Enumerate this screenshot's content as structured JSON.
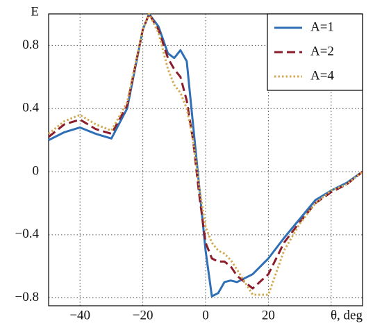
{
  "chart_data": {
    "type": "line",
    "ylabel": "E",
    "xlabel": "θ, deg",
    "x": [
      -50,
      -45,
      -40,
      -35,
      -30,
      -25,
      -20,
      -18,
      -15,
      -12,
      -10,
      -8,
      -6,
      -4,
      -2,
      0,
      2,
      4,
      6,
      8,
      10,
      15,
      20,
      25,
      30,
      35,
      40,
      45,
      50
    ],
    "series": [
      {
        "name": "A=1",
        "color": "#2f6fb5",
        "dash": "solid",
        "values": [
          0.2,
          0.25,
          0.28,
          0.24,
          0.21,
          0.4,
          0.9,
          1.0,
          0.92,
          0.75,
          0.72,
          0.77,
          0.7,
          0.3,
          -0.1,
          -0.5,
          -0.79,
          -0.77,
          -0.7,
          -0.69,
          -0.7,
          -0.65,
          -0.55,
          -0.42,
          -0.3,
          -0.18,
          -0.12,
          -0.07,
          0
        ]
      },
      {
        "name": "A=2",
        "color": "#8b1c2c",
        "dash": "dashed",
        "values": [
          0.22,
          0.3,
          0.33,
          0.27,
          0.24,
          0.42,
          0.9,
          1.0,
          0.9,
          0.72,
          0.65,
          0.6,
          0.45,
          0.2,
          -0.15,
          -0.45,
          -0.55,
          -0.57,
          -0.57,
          -0.6,
          -0.66,
          -0.74,
          -0.65,
          -0.45,
          -0.32,
          -0.2,
          -0.13,
          -0.08,
          0
        ]
      },
      {
        "name": "A=4",
        "color": "#d2aa52",
        "dash": "dotted",
        "values": [
          0.24,
          0.32,
          0.36,
          0.3,
          0.26,
          0.44,
          0.9,
          1.0,
          0.88,
          0.65,
          0.55,
          0.5,
          0.4,
          0.2,
          -0.1,
          -0.35,
          -0.45,
          -0.5,
          -0.52,
          -0.56,
          -0.62,
          -0.78,
          -0.78,
          -0.5,
          -0.33,
          -0.2,
          -0.12,
          -0.08,
          0
        ]
      }
    ],
    "xlim": [
      -50,
      50
    ],
    "ylim": [
      -0.85,
      1.0
    ],
    "xticks": [
      {
        "value": -40,
        "label": "−40"
      },
      {
        "value": -20,
        "label": "−20"
      },
      0,
      20,
      40
    ],
    "yticks": [
      {
        "value": -0.8,
        "label": "−0.8"
      },
      {
        "value": -0.4,
        "label": "−0.4"
      },
      0,
      0.4,
      0.8
    ],
    "grid": true,
    "legend": "upper right"
  }
}
